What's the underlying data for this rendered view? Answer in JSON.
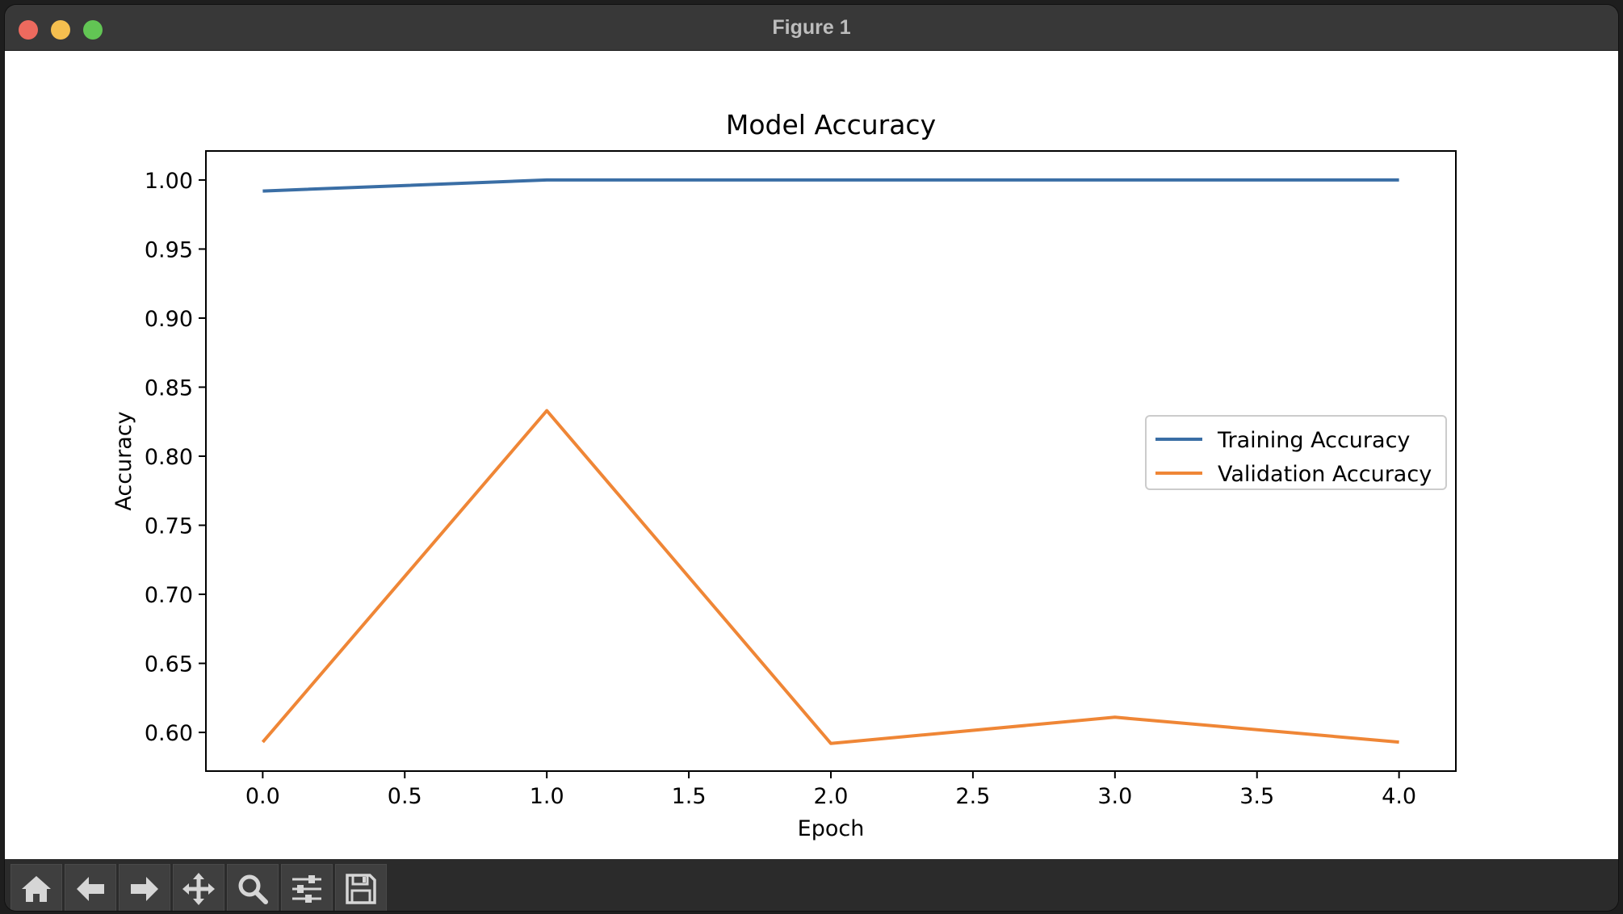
{
  "window": {
    "title": "Figure 1"
  },
  "toolbar": {
    "buttons": [
      {
        "name": "home-button",
        "icon": "home-icon"
      },
      {
        "name": "back-button",
        "icon": "arrow-left-icon"
      },
      {
        "name": "forward-button",
        "icon": "arrow-right-icon"
      },
      {
        "name": "pan-button",
        "icon": "move-icon"
      },
      {
        "name": "zoom-button",
        "icon": "magnifier-icon"
      },
      {
        "name": "configure-subplots-button",
        "icon": "sliders-icon"
      },
      {
        "name": "save-button",
        "icon": "floppy-disk-icon"
      }
    ]
  },
  "chart_data": {
    "type": "line",
    "title": "Model Accuracy",
    "xlabel": "Epoch",
    "ylabel": "Accuracy",
    "xlim": [
      -0.2,
      4.2
    ],
    "ylim": [
      0.572,
      1.021
    ],
    "xticks": [
      0.0,
      0.5,
      1.0,
      1.5,
      2.0,
      2.5,
      3.0,
      3.5,
      4.0
    ],
    "xtick_labels": [
      "0.0",
      "0.5",
      "1.0",
      "1.5",
      "2.0",
      "2.5",
      "3.0",
      "3.5",
      "4.0"
    ],
    "yticks": [
      0.6,
      0.65,
      0.7,
      0.75,
      0.8,
      0.85,
      0.9,
      0.95,
      1.0
    ],
    "ytick_labels": [
      "0.60",
      "0.65",
      "0.70",
      "0.75",
      "0.80",
      "0.85",
      "0.90",
      "0.95",
      "1.00"
    ],
    "x": [
      0,
      1,
      2,
      3,
      4
    ],
    "series": [
      {
        "name": "Training Accuracy",
        "color": "#3a6ea5",
        "values": [
          0.992,
          1.0,
          1.0,
          1.0,
          1.0
        ]
      },
      {
        "name": "Validation Accuracy",
        "color": "#ef8636",
        "values": [
          0.593,
          0.833,
          0.592,
          0.611,
          0.593
        ]
      }
    ],
    "legend": "center-right",
    "grid": false
  }
}
